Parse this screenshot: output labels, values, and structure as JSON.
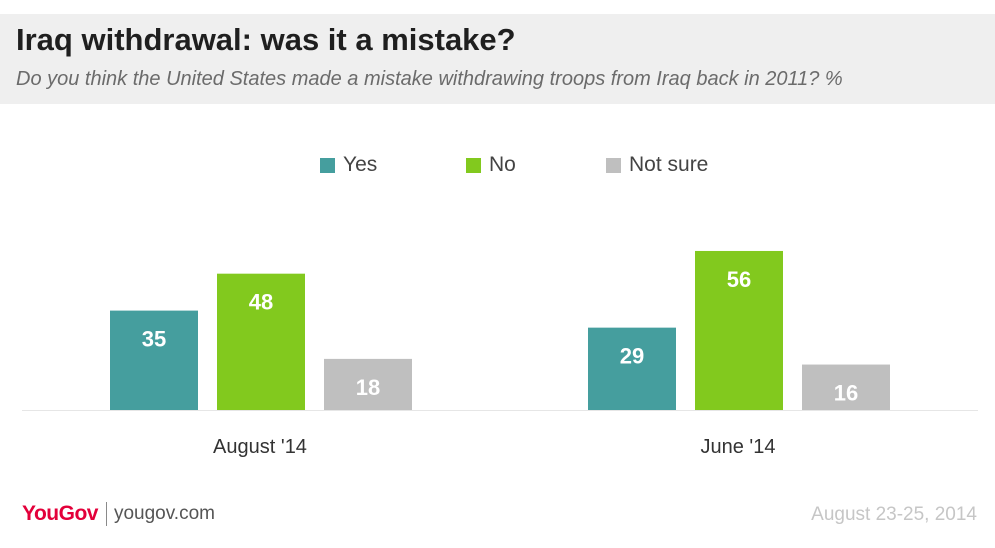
{
  "header": {
    "title": "Iraq withdrawal: was it a mistake?",
    "subtitle": "Do you think the United States made a mistake withdrawing troops from Iraq back in 2011? %"
  },
  "legend": {
    "items": [
      {
        "label": "Yes",
        "color": "#459e9e"
      },
      {
        "label": "No",
        "color": "#82c91e"
      },
      {
        "label": "Not sure",
        "color": "#bfbfbf"
      }
    ],
    "placement": "top-center"
  },
  "chart_data": {
    "type": "bar",
    "categories": [
      "August '14",
      "June '14"
    ],
    "series": [
      {
        "name": "Yes",
        "color": "#459e9e",
        "values": [
          35,
          29
        ]
      },
      {
        "name": "No",
        "color": "#82c91e",
        "values": [
          48,
          56
        ]
      },
      {
        "name": "Not sure",
        "color": "#bfbfbf",
        "values": [
          18,
          16
        ]
      }
    ],
    "grid": false,
    "legend": "top-center"
  },
  "footer": {
    "brand": "YouGov",
    "site": "yougov.com",
    "date": "August 23-25, 2014",
    "brand_color": "#e3003a"
  }
}
